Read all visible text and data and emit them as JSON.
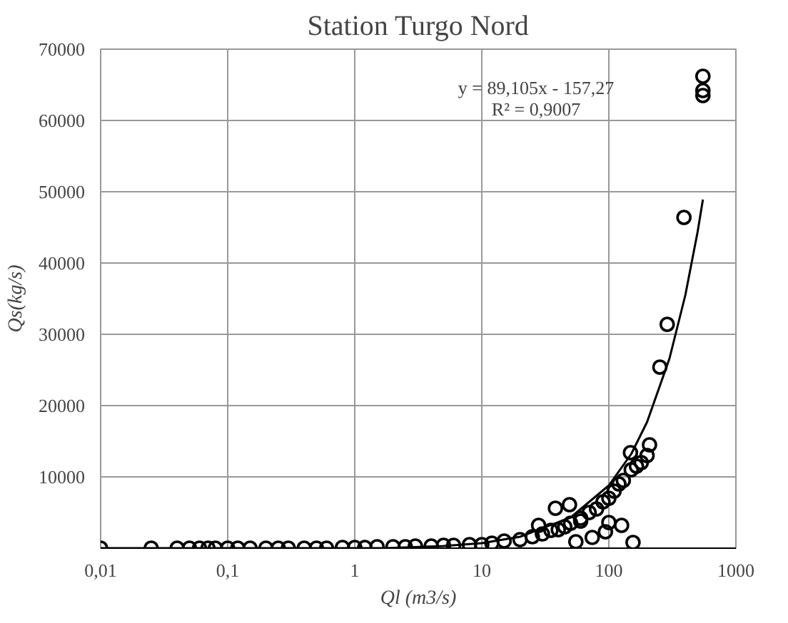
{
  "chart_data": {
    "type": "scatter",
    "title": "Station Turgo Nord",
    "xlabel": "Ql (m3/s)",
    "ylabel": "Qs(kg/s)",
    "log": "x",
    "grid": true,
    "marker": "circle",
    "xlim": [
      0.01,
      1000
    ],
    "xticks": [
      {
        "value": 0.01,
        "label": "0,01"
      },
      {
        "value": 0.1,
        "label": "0,1"
      },
      1,
      10,
      100,
      1000
    ],
    "ylim": [
      0,
      70000
    ],
    "yticks": [
      {
        "value": 0,
        "label": null
      },
      10000,
      20000,
      30000,
      40000,
      50000,
      60000,
      70000
    ],
    "annotations": [
      "y = 89,105x - 157,27",
      "R² = 0,9007"
    ],
    "series": [
      {
        "color": "#000000",
        "x": [
          0.01,
          0.025,
          0.04,
          0.05,
          0.06,
          0.07,
          0.08,
          0.1,
          0.12,
          0.15,
          0.2,
          0.25,
          0.3,
          0.4,
          0.5,
          0.6,
          0.8,
          1,
          1.2,
          1.5,
          2,
          2.5,
          3,
          4,
          5,
          6,
          8,
          10,
          12,
          15,
          20,
          25,
          28,
          30,
          35,
          38,
          40,
          45,
          49,
          50,
          55,
          60,
          60,
          70,
          74,
          80,
          90,
          94,
          100,
          100,
          110,
          120,
          126,
          130,
          148,
          150,
          155,
          165,
          180,
          200,
          209,
          252,
          288,
          390,
          550,
          550,
          550
        ],
        "values": [
          0,
          0,
          0,
          0,
          0,
          0,
          0,
          0,
          0,
          0,
          0,
          0,
          0,
          0,
          0,
          0,
          100,
          100,
          100,
          200,
          200,
          200,
          300,
          300,
          400,
          400,
          500,
          500,
          700,
          1000,
          1200,
          1600,
          3200,
          2000,
          2500,
          5600,
          2600,
          3000,
          6100,
          3500,
          900,
          3800,
          4200,
          5000,
          1500,
          5500,
          6500,
          2300,
          7000,
          3600,
          8000,
          9000,
          3200,
          9500,
          13400,
          11000,
          800,
          11500,
          12000,
          13000,
          14500,
          25400,
          31400,
          46400,
          63500,
          64200,
          66200
        ]
      },
      {
        "type": "line",
        "color": "#000000",
        "marker": "none",
        "x": [
          0.01,
          1.765,
          5,
          10,
          20,
          50,
          100,
          150,
          200,
          300,
          400,
          500,
          550
        ],
        "values": [
          0,
          0,
          300,
          700,
          1600,
          4300,
          8800,
          13200,
          17700,
          26600,
          35500,
          44400,
          48900
        ]
      }
    ]
  }
}
